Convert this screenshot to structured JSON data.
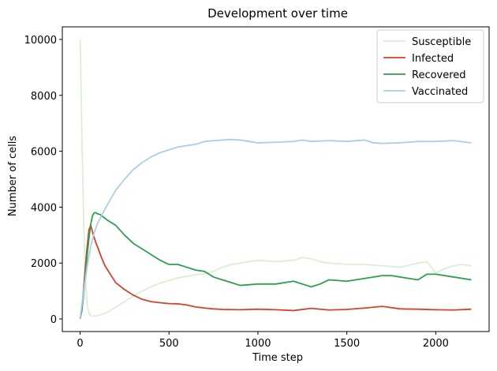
{
  "chart_data": {
    "type": "line",
    "title": "Development over time",
    "xlabel": "Time step",
    "ylabel": "Number of cells",
    "xlim": [
      -100,
      2300
    ],
    "ylim": [
      -450,
      10450
    ],
    "xticks": [
      0,
      500,
      1000,
      1500,
      2000
    ],
    "yticks": [
      0,
      2000,
      4000,
      6000,
      8000,
      10000
    ],
    "grid": false,
    "legend_position": "top-right",
    "series": [
      {
        "name": "Susceptible",
        "color": "#d9f0d3",
        "x": [
          0,
          5,
          10,
          20,
          30,
          40,
          50,
          60,
          70,
          80,
          100,
          150,
          200,
          250,
          300,
          350,
          400,
          450,
          500,
          550,
          600,
          650,
          700,
          750,
          800,
          850,
          900,
          950,
          1000,
          1100,
          1200,
          1250,
          1300,
          1350,
          1400,
          1500,
          1600,
          1700,
          1800,
          1900,
          1950,
          2000,
          2050,
          2100,
          2150,
          2200
        ],
        "y": [
          10000,
          8500,
          6500,
          3500,
          1400,
          500,
          200,
          120,
          100,
          100,
          120,
          230,
          420,
          620,
          820,
          1000,
          1150,
          1280,
          1380,
          1470,
          1530,
          1580,
          1620,
          1700,
          1850,
          1950,
          2000,
          2050,
          2100,
          2050,
          2100,
          2200,
          2150,
          2050,
          2000,
          1950,
          1950,
          1900,
          1850,
          2000,
          2050,
          1650,
          1800,
          1900,
          1950,
          1900
        ]
      },
      {
        "name": "Infected",
        "color": "#d6432a",
        "x": [
          0,
          10,
          20,
          30,
          40,
          50,
          60,
          70,
          80,
          90,
          100,
          120,
          140,
          160,
          180,
          200,
          250,
          300,
          350,
          400,
          450,
          500,
          550,
          600,
          650,
          700,
          750,
          800,
          900,
          1000,
          1100,
          1200,
          1300,
          1400,
          1500,
          1600,
          1700,
          1800,
          1900,
          2000,
          2100,
          2200
        ],
        "y": [
          0,
          400,
          1100,
          1900,
          2600,
          3200,
          3350,
          3100,
          2900,
          2700,
          2550,
          2200,
          1900,
          1700,
          1500,
          1300,
          1050,
          850,
          700,
          620,
          580,
          550,
          540,
          500,
          430,
          390,
          360,
          340,
          330,
          350,
          330,
          300,
          380,
          320,
          340,
          390,
          450,
          360,
          350,
          330,
          320,
          350
        ]
      },
      {
        "name": "Recovered",
        "color": "#2e9e4f",
        "x": [
          0,
          10,
          20,
          30,
          40,
          50,
          60,
          70,
          80,
          90,
          100,
          110,
          120,
          150,
          200,
          250,
          300,
          350,
          400,
          450,
          500,
          550,
          600,
          650,
          700,
          750,
          800,
          850,
          900,
          1000,
          1100,
          1200,
          1250,
          1300,
          1350,
          1400,
          1500,
          1600,
          1700,
          1750,
          1800,
          1850,
          1900,
          1950,
          2000,
          2100,
          2200
        ],
        "y": [
          0,
          300,
          900,
          1600,
          2300,
          2900,
          3400,
          3700,
          3800,
          3800,
          3750,
          3750,
          3700,
          3550,
          3350,
          3000,
          2700,
          2500,
          2300,
          2100,
          1950,
          1950,
          1850,
          1750,
          1700,
          1500,
          1400,
          1300,
          1200,
          1250,
          1250,
          1350,
          1250,
          1150,
          1250,
          1400,
          1350,
          1450,
          1550,
          1550,
          1500,
          1450,
          1400,
          1600,
          1600,
          1500,
          1400
        ]
      },
      {
        "name": "Vaccinated",
        "color": "#aecde1",
        "x": [
          0,
          20,
          40,
          60,
          80,
          100,
          150,
          200,
          250,
          300,
          350,
          400,
          450,
          500,
          550,
          600,
          650,
          700,
          750,
          800,
          850,
          900,
          950,
          1000,
          1100,
          1200,
          1250,
          1300,
          1400,
          1500,
          1600,
          1650,
          1700,
          1800,
          1900,
          2000,
          2100,
          2200
        ],
        "y": [
          0,
          1000,
          1900,
          2600,
          3100,
          3450,
          4050,
          4600,
          5000,
          5350,
          5600,
          5800,
          5950,
          6050,
          6150,
          6200,
          6250,
          6350,
          6380,
          6400,
          6420,
          6400,
          6350,
          6300,
          6320,
          6350,
          6400,
          6350,
          6380,
          6350,
          6400,
          6300,
          6280,
          6300,
          6350,
          6350,
          6380,
          6300
        ]
      }
    ]
  }
}
